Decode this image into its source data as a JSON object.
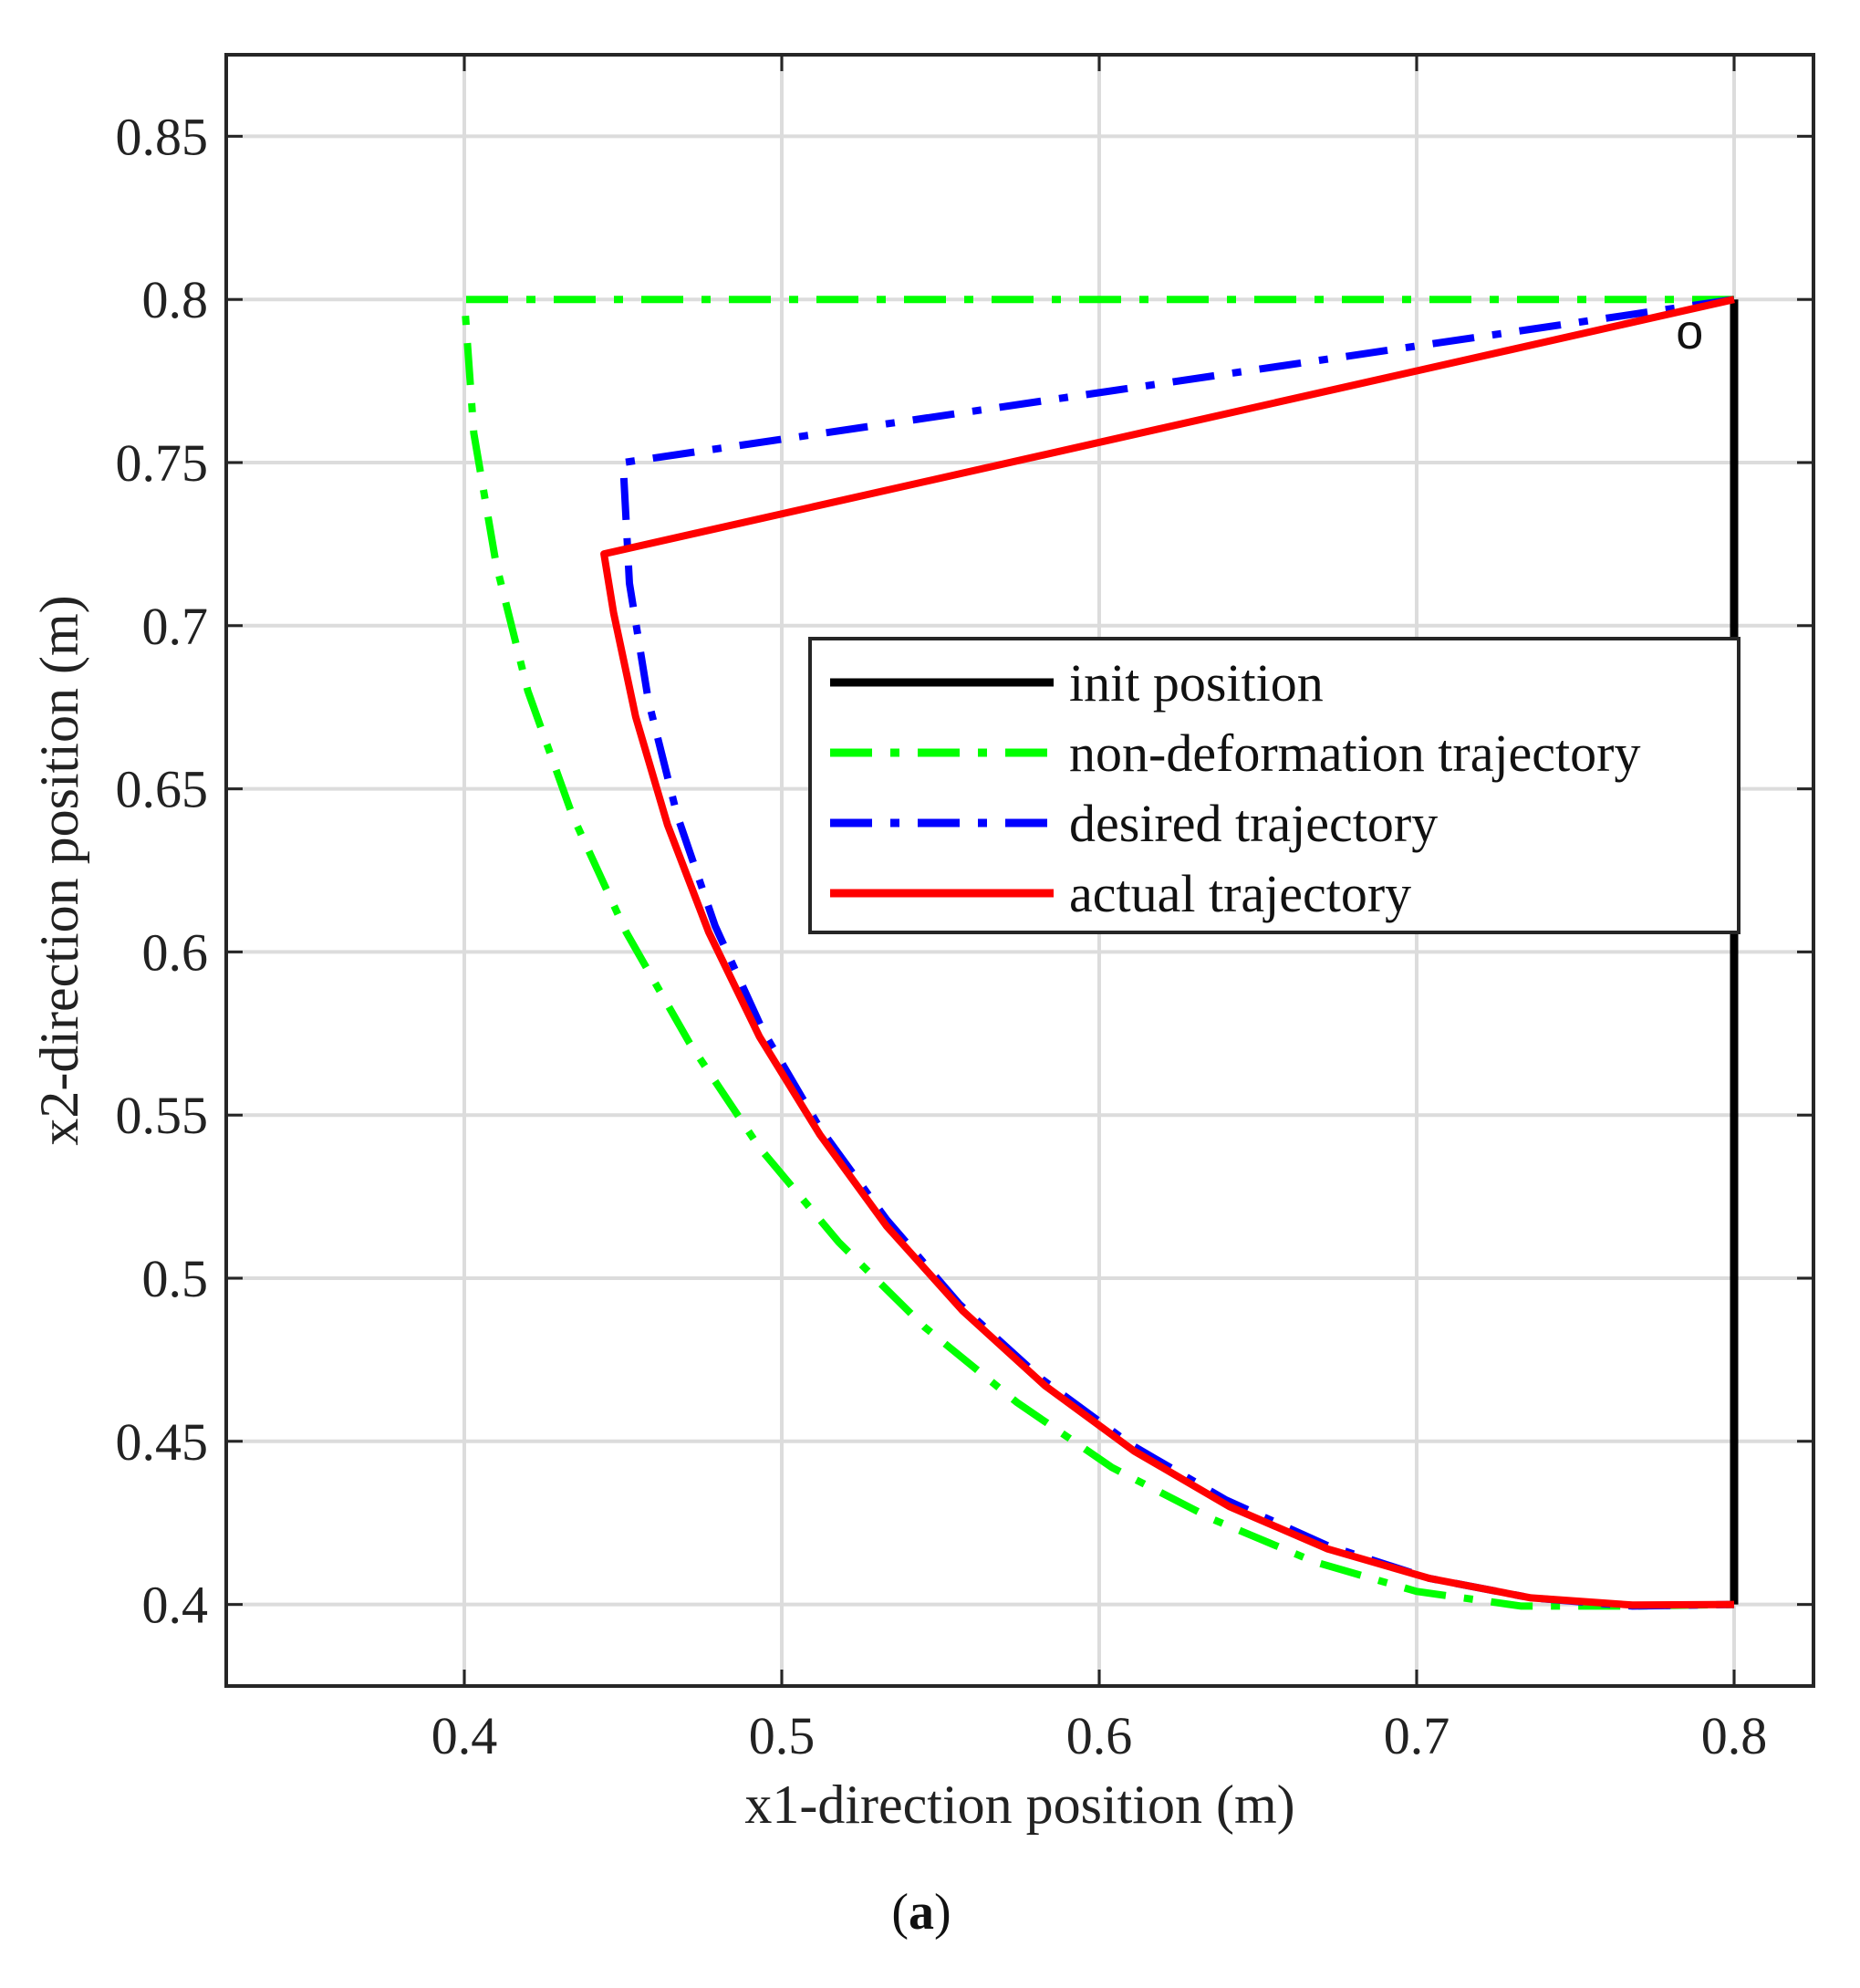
{
  "chart_data": {
    "type": "line",
    "title": "",
    "xlabel": "x1-direction position (m)",
    "ylabel": "x2-direction position (m)",
    "xlim": [
      0.325,
      0.825
    ],
    "ylim": [
      0.375,
      0.875
    ],
    "xticks": [
      0.4,
      0.5,
      0.6,
      0.7,
      0.8
    ],
    "xtick_labels": [
      "0.4",
      "0.5",
      "0.6",
      "0.7",
      "0.8"
    ],
    "yticks": [
      0.4,
      0.45,
      0.5,
      0.55,
      0.6,
      0.65,
      0.7,
      0.75,
      0.8,
      0.85
    ],
    "ytick_labels": [
      "0.4",
      "0.45",
      "0.5",
      "0.55",
      "0.6",
      "0.65",
      "0.7",
      "0.75",
      "0.8",
      "0.85"
    ],
    "grid": true,
    "legend_position": "center-right",
    "point_marker": {
      "label": "o",
      "x": 0.786,
      "y": 0.789
    },
    "caption": {
      "open": "(",
      "letter": "a",
      "close": ")"
    },
    "series": [
      {
        "name": "init position",
        "color": "#000000",
        "style": "solid",
        "x": [
          0.8,
          0.8
        ],
        "y": [
          0.8,
          0.4
        ]
      },
      {
        "name": "non-deformation trajectory",
        "color": "#00ff00",
        "style": "dashdot",
        "x": [
          0.8,
          0.4,
          0.4,
          0.403,
          0.41,
          0.42,
          0.434,
          0.451,
          0.471,
          0.493,
          0.518,
          0.545,
          0.574,
          0.604,
          0.636,
          0.668,
          0.7,
          0.733,
          0.767,
          0.8
        ],
        "y": [
          0.8,
          0.8,
          0.8,
          0.759,
          0.719,
          0.68,
          0.642,
          0.606,
          0.572,
          0.54,
          0.511,
          0.485,
          0.462,
          0.442,
          0.426,
          0.413,
          0.404,
          0.3995,
          0.3995,
          0.4
        ]
      },
      {
        "name": "desired trajectory",
        "color": "#0000ff",
        "style": "dashdot",
        "x": [
          0.8,
          0.45,
          0.45,
          0.452,
          0.458,
          0.467,
          0.479,
          0.494,
          0.512,
          0.533,
          0.556,
          0.582,
          0.61,
          0.64,
          0.672,
          0.704,
          0.736,
          0.768,
          0.8
        ],
        "y": [
          0.8,
          0.75,
          0.75,
          0.713,
          0.677,
          0.642,
          0.608,
          0.576,
          0.546,
          0.518,
          0.492,
          0.469,
          0.449,
          0.432,
          0.418,
          0.408,
          0.402,
          0.3995,
          0.4
        ]
      },
      {
        "name": "actual trajectory",
        "color": "#ff0000",
        "style": "solid",
        "x": [
          0.8,
          0.444,
          0.444,
          0.447,
          0.454,
          0.464,
          0.477,
          0.493,
          0.512,
          0.533,
          0.557,
          0.583,
          0.611,
          0.641,
          0.672,
          0.704,
          0.736,
          0.768,
          0.8
        ],
        "y": [
          0.8,
          0.722,
          0.722,
          0.704,
          0.672,
          0.639,
          0.606,
          0.574,
          0.544,
          0.516,
          0.49,
          0.467,
          0.447,
          0.43,
          0.417,
          0.408,
          0.402,
          0.3998,
          0.4
        ]
      }
    ]
  }
}
